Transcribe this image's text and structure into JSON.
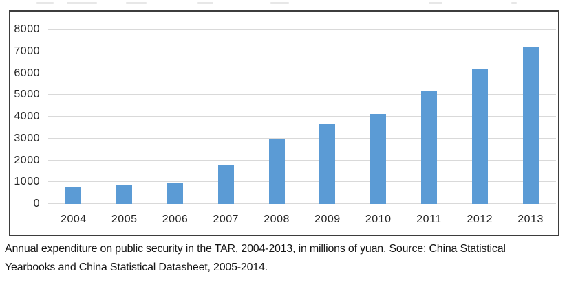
{
  "caption": {
    "line1": "Annual expenditure on public security in the TAR, 2004-2013, in millions of yuan. Source: China Statistical",
    "line2": "Yearbooks and China Statistical Datasheet, 2005-2014."
  },
  "chart_data": {
    "type": "bar",
    "title": "",
    "xlabel": "",
    "ylabel": "",
    "categories": [
      "2004",
      "2005",
      "2006",
      "2007",
      "2008",
      "2009",
      "2010",
      "2011",
      "2012",
      "2013"
    ],
    "values": [
      750,
      850,
      930,
      1780,
      3000,
      3660,
      4140,
      5190,
      6170,
      7190
    ],
    "ylim": [
      0,
      8000
    ],
    "yticks": [
      0,
      1000,
      2000,
      3000,
      4000,
      5000,
      6000,
      7000,
      8000
    ],
    "grid": true,
    "legend": "none",
    "unit": "millions of yuan",
    "bar_color": "#5b9bd5",
    "gridline_color": "#d9d9d9",
    "axis_label_color": "#262626",
    "frame_border_color": "#3d3d3d"
  }
}
